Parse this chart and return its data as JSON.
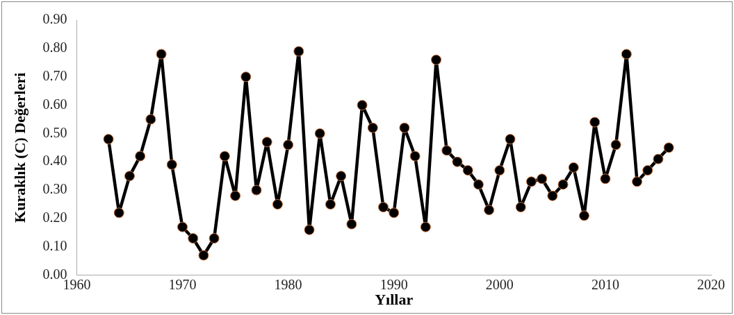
{
  "chart_data": {
    "type": "line",
    "xlabel": "Yıllar",
    "ylabel": "Kuraklık (C) Değerleri",
    "x": [
      1963,
      1964,
      1965,
      1966,
      1967,
      1968,
      1969,
      1970,
      1971,
      1972,
      1973,
      1974,
      1975,
      1976,
      1977,
      1978,
      1979,
      1980,
      1981,
      1982,
      1983,
      1984,
      1985,
      1986,
      1987,
      1988,
      1989,
      1990,
      1991,
      1992,
      1993,
      1994,
      1995,
      1996,
      1997,
      1998,
      1999,
      2000,
      2001,
      2002,
      2003,
      2004,
      2005,
      2006,
      2007,
      2008,
      2009,
      2010,
      2011,
      2012,
      2013,
      2014,
      2015,
      2016
    ],
    "series": [
      {
        "color": "#000000",
        "values": [
          0.48,
          0.22,
          0.35,
          0.42,
          0.55,
          0.78,
          0.39,
          0.17,
          0.13,
          0.07,
          0.13,
          0.42,
          0.28,
          0.7,
          0.3,
          0.47,
          0.25,
          0.46,
          0.79,
          0.16,
          0.5,
          0.25,
          0.35,
          0.18,
          0.6,
          0.52,
          0.24,
          0.22,
          0.52,
          0.42,
          0.17,
          0.76,
          0.44,
          0.4,
          0.37,
          0.32,
          0.23,
          0.37,
          0.48,
          0.24,
          0.33,
          0.34,
          0.28,
          0.32,
          0.38,
          0.21,
          0.54,
          0.34,
          0.46,
          0.78,
          0.33,
          0.37,
          0.41,
          0.45
        ]
      }
    ],
    "xlim": [
      1960,
      2020
    ],
    "xticks": [
      1960,
      1970,
      1980,
      1990,
      2000,
      2010,
      2020
    ],
    "ylim": [
      0,
      0.9
    ],
    "yticks": [
      {
        "value": 0,
        "label": "0.00"
      },
      {
        "value": 0.1,
        "label": "0.10"
      },
      {
        "value": 0.2,
        "label": "0.20"
      },
      {
        "value": 0.3,
        "label": "0.30"
      },
      {
        "value": 0.4,
        "label": "0.40"
      },
      {
        "value": 0.5,
        "label": "0.50"
      },
      {
        "value": 0.6,
        "label": "0.60"
      },
      {
        "value": 0.7,
        "label": "0.70"
      },
      {
        "value": 0.8,
        "label": "0.80"
      },
      {
        "value": 0.9,
        "label": "0.90"
      }
    ],
    "grid": false,
    "legend": false,
    "marker": "circle",
    "line_style": "solid"
  }
}
